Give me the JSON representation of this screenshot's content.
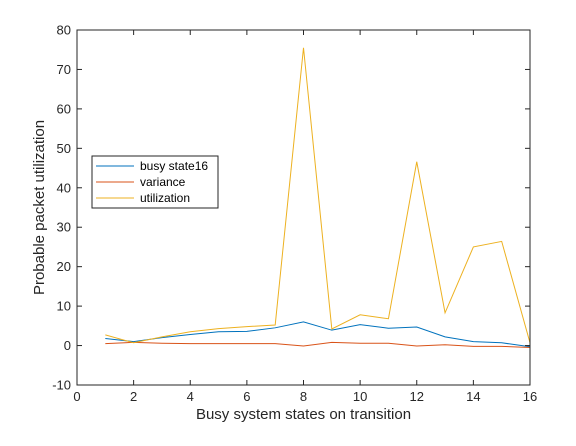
{
  "chart_data": {
    "type": "line",
    "title": "",
    "xlabel": "Busy system states on transition",
    "ylabel": "Probable packet utilization",
    "xlim": [
      0,
      16
    ],
    "ylim": [
      -10,
      80
    ],
    "xticks": [
      0,
      2,
      4,
      6,
      8,
      10,
      12,
      14,
      16
    ],
    "yticks": [
      -10,
      0,
      10,
      20,
      30,
      40,
      50,
      60,
      70,
      80
    ],
    "grid": false,
    "legend_location": "left-middle",
    "x": [
      1,
      2,
      3,
      4,
      5,
      6,
      7,
      8,
      9,
      10,
      11,
      12,
      13,
      14,
      15,
      16
    ],
    "series": [
      {
        "name": "busy state16",
        "color": "#0072bd",
        "values": [
          1.8,
          1.0,
          2.0,
          2.8,
          3.5,
          3.6,
          4.5,
          6.0,
          3.9,
          5.3,
          4.4,
          4.7,
          2.2,
          1.0,
          0.7,
          -0.3
        ]
      },
      {
        "name": "variance",
        "color": "#d95319",
        "values": [
          0.5,
          0.8,
          0.6,
          0.5,
          0.5,
          0.5,
          0.5,
          -0.1,
          0.8,
          0.6,
          0.6,
          -0.1,
          0.2,
          -0.2,
          -0.2,
          -0.5
        ]
      },
      {
        "name": "utilization",
        "color": "#edb120",
        "values": [
          2.7,
          0.7,
          2.2,
          3.5,
          4.3,
          4.8,
          5.2,
          75.5,
          4.2,
          7.8,
          6.8,
          46.6,
          8.3,
          25.0,
          26.4,
          0.7
        ]
      }
    ]
  }
}
